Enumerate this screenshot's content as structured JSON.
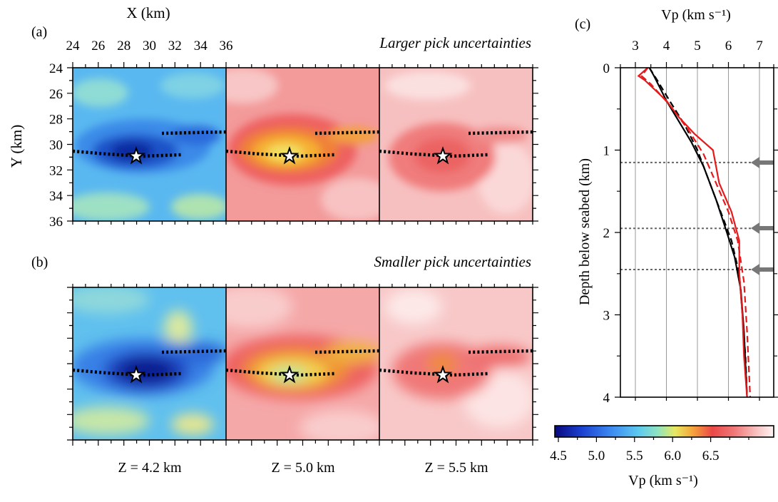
{
  "maps": {
    "panel_a_label": "(a)",
    "panel_b_label": "(b)",
    "title_a": "Larger pick uncertainties",
    "title_b": "Smaller pick uncertainties",
    "x_axis_label": "X (km)",
    "y_axis_label": "Y (km)",
    "x_ticks": [
      "24",
      "26",
      "28",
      "30",
      "32",
      "34",
      "36"
    ],
    "y_ticks": [
      "24",
      "26",
      "28",
      "30",
      "32",
      "34",
      "36"
    ],
    "depth_labels": [
      "Z = 4.2 km",
      "Z = 5.0 km",
      "Z = 5.5 km"
    ]
  },
  "colorbar": {
    "label": "Vp (km s⁻¹)",
    "ticks": [
      "4.5",
      "5.0",
      "5.5",
      "6.0",
      "6.5"
    ]
  },
  "profile": {
    "panel_label": "(c)",
    "top_label": "Vp (km s⁻¹)",
    "y_label": "Depth below seabed (km)",
    "x_ticks": [
      "3",
      "4",
      "5",
      "6",
      "7"
    ],
    "y_ticks": [
      "0",
      "1",
      "2",
      "3",
      "4"
    ]
  },
  "chart_data": [
    {
      "type": "heatmap",
      "title": "Larger pick uncertainties",
      "xlabel": "X (km)",
      "ylabel": "Y (km)",
      "xlim": [
        24,
        36
      ],
      "ylim": [
        24,
        36
      ],
      "colorscale": "jet-like, 4.5 to 6.8 km/s",
      "slices": [
        {
          "label": "Z = 4.2 km",
          "min_vp": 4.6,
          "anomaly_center": [
            29.2,
            31.0
          ]
        },
        {
          "label": "Z = 5.0 km",
          "min_vp": 5.9,
          "anomaly_center": [
            29.9,
            31.0
          ]
        },
        {
          "label": "Z = 5.5 km",
          "min_vp": 6.3,
          "anomaly_center": [
            30.0,
            31.0
          ]
        }
      ]
    },
    {
      "type": "heatmap",
      "title": "Smaller pick uncertainties",
      "xlim": [
        24,
        36
      ],
      "ylim": [
        24,
        36
      ],
      "slices": [
        {
          "label": "Z = 4.2 km",
          "min_vp": 4.5,
          "anomaly_center": [
            29.0,
            31.0
          ]
        },
        {
          "label": "Z = 5.0 km",
          "min_vp": 5.7,
          "anomaly_center": [
            29.8,
            31.0
          ]
        },
        {
          "label": "Z = 5.5 km",
          "min_vp": 6.1,
          "anomaly_center": [
            29.8,
            30.6
          ]
        }
      ]
    },
    {
      "type": "line",
      "xlabel": "Vp (km s⁻¹)",
      "ylabel": "Depth below seabed (km)",
      "xlim": [
        2.8,
        7.0
      ],
      "ylim": [
        4,
        0
      ],
      "series": [
        {
          "color": "#000000",
          "dash": "solid",
          "points": [
            [
              3.45,
              0.0
            ],
            [
              3.6,
              0.1
            ],
            [
              4.0,
              0.4
            ],
            [
              4.4,
              0.65
            ],
            [
              4.8,
              0.9
            ],
            [
              5.2,
              1.2
            ],
            [
              5.6,
              1.6
            ],
            [
              5.95,
              2.0
            ],
            [
              6.2,
              2.3
            ],
            [
              6.4,
              2.7
            ],
            [
              6.5,
              3.2
            ],
            [
              6.55,
              3.6
            ],
            [
              6.6,
              4.0
            ]
          ]
        },
        {
          "color": "#000000",
          "dash": "dashed",
          "points": [
            [
              3.45,
              0.0
            ],
            [
              3.7,
              0.15
            ],
            [
              4.1,
              0.4
            ],
            [
              4.6,
              0.7
            ],
            [
              5.0,
              1.0
            ],
            [
              5.4,
              1.4
            ],
            [
              5.8,
              1.8
            ],
            [
              6.1,
              2.1
            ],
            [
              6.35,
              2.5
            ],
            [
              6.45,
              3.0
            ],
            [
              6.55,
              3.5
            ],
            [
              6.6,
              4.0
            ]
          ]
        },
        {
          "color": "#e41a1c",
          "dash": "solid",
          "points": [
            [
              3.4,
              0.0
            ],
            [
              3.1,
              0.1
            ],
            [
              3.3,
              0.15
            ],
            [
              4.0,
              0.4
            ],
            [
              4.4,
              0.6
            ],
            [
              4.9,
              0.8
            ],
            [
              5.5,
              1.0
            ],
            [
              5.7,
              1.4
            ],
            [
              6.1,
              1.75
            ],
            [
              6.35,
              2.1
            ],
            [
              6.35,
              2.5
            ],
            [
              6.45,
              3.0
            ],
            [
              6.5,
              3.5
            ],
            [
              6.6,
              4.0
            ]
          ]
        },
        {
          "color": "#e41a1c",
          "dash": "dashed",
          "points": [
            [
              3.4,
              0.0
            ],
            [
              3.2,
              0.1
            ],
            [
              3.5,
              0.2
            ],
            [
              4.1,
              0.45
            ],
            [
              4.7,
              0.75
            ],
            [
              5.2,
              1.05
            ],
            [
              5.6,
              1.4
            ],
            [
              6.0,
              1.75
            ],
            [
              6.3,
              2.1
            ],
            [
              6.5,
              2.6
            ],
            [
              6.6,
              3.2
            ],
            [
              6.7,
              4.0
            ]
          ]
        }
      ],
      "reference_depths": [
        1.15,
        1.95,
        2.45
      ]
    }
  ]
}
